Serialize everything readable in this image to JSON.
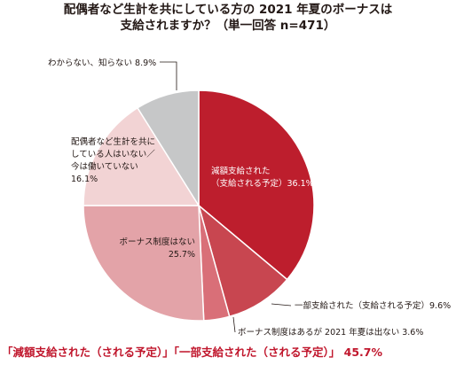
{
  "title": {
    "line1": "配偶者など生計を共にしている方の 2021 年夏のボーナスは",
    "line2": "支給されますか？（単一回答 n=471）"
  },
  "chart_data": {
    "type": "pie",
    "title": "配偶者など生計を共にしている方の 2021 年夏のボーナスは 支給されますか？（単一回答 n=471）",
    "unit": "%",
    "start_angle_deg": 0,
    "direction": "clockwise",
    "slices": [
      {
        "label_lines": [
          "減額支給された",
          "（支給される予定）36.1%"
        ],
        "value": 36.1,
        "color": "#bd1e2d",
        "text_color": "#ffffff"
      },
      {
        "label_lines": [
          "一部支給された（支給される予定）9.6%"
        ],
        "value": 9.6,
        "color": "#c84650",
        "text_color": "#231815"
      },
      {
        "label_lines": [
          "ボーナス制度はあるが 2021 年夏は出ない 3.6%"
        ],
        "value": 3.6,
        "color": "#d96f78",
        "text_color": "#231815"
      },
      {
        "label_lines": [
          "ボーナス制度はない",
          "25.7%"
        ],
        "value": 25.7,
        "color": "#e3a3a8",
        "text_color": "#231815"
      },
      {
        "label_lines": [
          "配偶者など生計を共に",
          "している人はいない／",
          "今は働いていない",
          "16.1%"
        ],
        "value": 16.1,
        "color": "#f2d3d4",
        "text_color": "#231815"
      },
      {
        "label_lines": [
          "わからない、知らない 8.9%"
        ],
        "value": 8.9,
        "color": "#c6c7c8",
        "text_color": "#231815"
      }
    ]
  },
  "footer": {
    "part1": "「減額支給された（される予定）」「一部支給された（される予定）」",
    "total": "45.7%"
  },
  "colors": {
    "accent": "#c0162c",
    "leader_line": "#231815"
  }
}
